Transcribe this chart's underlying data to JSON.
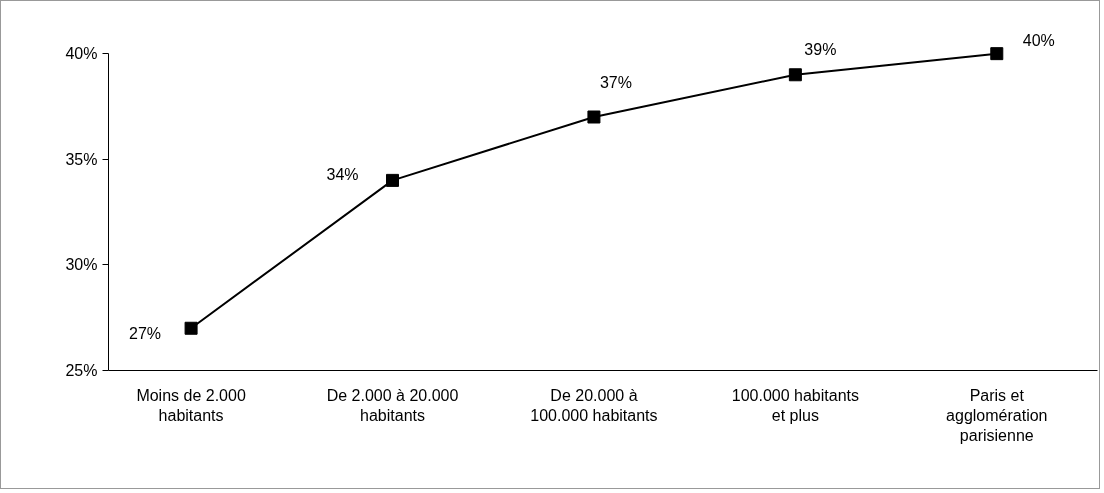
{
  "chart_data": {
    "type": "line",
    "categories": [
      "Moins de 2.000\nhabitants",
      "De 2.000 à 20.000\nhabitants",
      "De 20.000 à\n100.000 habitants",
      "100.000 habitants\net plus",
      "Paris et\nagglomération\nparisienne"
    ],
    "series": [
      {
        "color": "#000000",
        "values": [
          27,
          34,
          37,
          39,
          40
        ],
        "value_labels": [
          "27%",
          "34%",
          "37%",
          "39%",
          "40%"
        ]
      }
    ],
    "ylim": [
      25,
      40
    ],
    "yticks": [
      {
        "value": 25,
        "label": "25%"
      },
      {
        "value": 30,
        "label": "30%"
      },
      {
        "value": 35,
        "label": "35%"
      },
      {
        "value": 40,
        "label": "40%"
      }
    ],
    "marker": "square",
    "line_style": "solid",
    "grid": false
  }
}
